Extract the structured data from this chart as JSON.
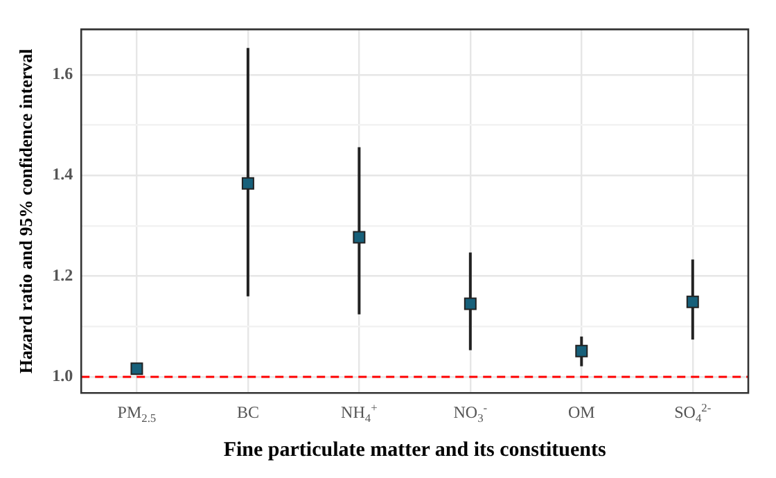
{
  "chart_data": {
    "type": "scatter",
    "xlabel": "Fine particulate matter and its constituents",
    "ylabel": "Hazard ratio and 95% confidence interval",
    "categories": [
      "PM$_{2.5}$",
      "BC",
      "NH$_{4}$$^{+}$",
      "NO$_{3}$$^{-}$",
      "OM",
      "SO$_{4}$$^{2-}$"
    ],
    "values": [
      1.016,
      1.384,
      1.277,
      1.145,
      1.051,
      1.149
    ],
    "errors": [
      [
        1.01,
        1.024
      ],
      [
        1.16,
        1.653
      ],
      [
        1.124,
        1.456
      ],
      [
        1.053,
        1.247
      ],
      [
        1.021,
        1.08
      ],
      [
        1.074,
        1.233
      ]
    ],
    "color": "#17607a",
    "marker": "square",
    "ylim": [
      0.968,
      1.69
    ],
    "yticks": [
      {
        "value": 1.0,
        "label": "1.0"
      },
      {
        "value": 1.1,
        "label": null
      },
      {
        "value": 1.2,
        "label": "1.2"
      },
      {
        "value": 1.3,
        "label": null
      },
      {
        "value": 1.4,
        "label": "1.4"
      },
      {
        "value": 1.5,
        "label": null
      },
      {
        "value": 1.6,
        "label": "1.6"
      }
    ],
    "grid": true,
    "ref_lines": [
      {
        "axis": "y",
        "value": 1.0,
        "color": "#ff0000",
        "line_style": "dashed"
      }
    ]
  }
}
